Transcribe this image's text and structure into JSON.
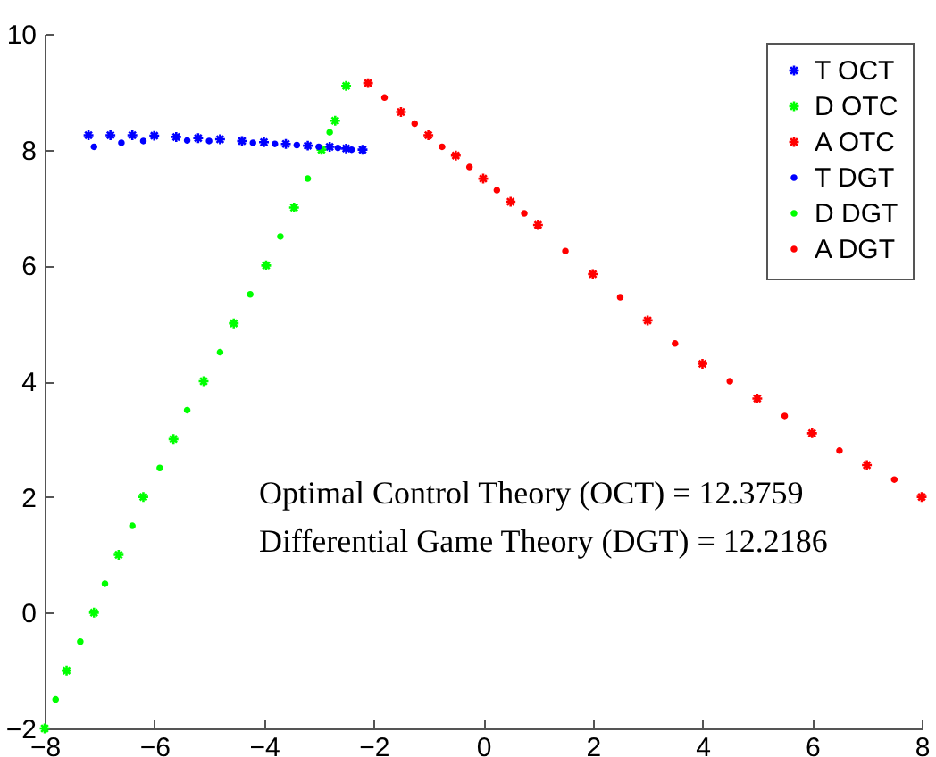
{
  "chart_data": {
    "type": "scatter",
    "xlim": [
      -8,
      8
    ],
    "xticks": [
      -8,
      -6,
      -4,
      -2,
      0,
      2,
      4,
      6,
      8
    ],
    "ylim": [
      -2,
      10
    ],
    "yticks": [
      -2,
      0,
      2,
      4,
      6,
      8,
      10
    ],
    "legend": "top right",
    "annotations": [
      "Optimal Control Theory (OCT) =  12.3759",
      "Differential Game Theory (DGT) =  12.2186"
    ],
    "series": [
      {
        "name": "T OCT",
        "color": "#0000ff",
        "marker": "cross",
        "x": [
          -7.2,
          -6.8,
          -6.4,
          -6.0,
          -5.6,
          -5.2,
          -4.8,
          -4.4,
          -4.0,
          -3.6,
          -3.2,
          -2.8,
          -2.5,
          -2.2
        ],
        "values": [
          8.25,
          8.25,
          8.25,
          8.24,
          8.22,
          8.2,
          8.18,
          8.15,
          8.13,
          8.1,
          8.07,
          8.05,
          8.02,
          8.0
        ]
      },
      {
        "name": "D OTC",
        "color": "#00ff00",
        "marker": "cross",
        "x": [
          -8.0,
          -7.6,
          -7.1,
          -6.65,
          -6.2,
          -5.65,
          -5.1,
          -4.55,
          -3.96,
          -3.45,
          -2.95,
          -2.7,
          -2.5
        ],
        "values": [
          -2.0,
          -1.0,
          0.0,
          1.0,
          2.0,
          3.0,
          4.0,
          5.0,
          6.0,
          7.0,
          8.0,
          8.5,
          9.1
        ]
      },
      {
        "name": "A OTC",
        "color": "#ff0000",
        "marker": "cross",
        "x": [
          -2.1,
          -1.5,
          -1.0,
          -0.5,
          0.0,
          0.5,
          1.0,
          2.0,
          3.0,
          4.0,
          5.0,
          6.0,
          7.0,
          8.0
        ],
        "values": [
          9.15,
          8.65,
          8.25,
          7.9,
          7.5,
          7.1,
          6.7,
          5.85,
          5.05,
          4.3,
          3.7,
          3.1,
          2.55,
          2.0
        ]
      },
      {
        "name": "T DGT",
        "color": "#0000ff",
        "marker": "circle",
        "x": [
          -7.1,
          -6.6,
          -6.2,
          -5.4,
          -5.0,
          -4.2,
          -3.8,
          -3.4,
          -3.0,
          -2.65,
          -2.4
        ],
        "values": [
          8.05,
          8.12,
          8.15,
          8.16,
          8.15,
          8.12,
          8.1,
          8.08,
          8.05,
          8.03,
          8.0
        ]
      },
      {
        "name": "D DGT",
        "color": "#00ff00",
        "marker": "circle",
        "x": [
          -7.8,
          -7.35,
          -6.9,
          -6.4,
          -5.9,
          -5.4,
          -4.8,
          -4.25,
          -3.7,
          -3.2,
          -2.8
        ],
        "values": [
          -1.5,
          -0.5,
          0.5,
          1.5,
          2.5,
          3.5,
          4.5,
          5.5,
          6.5,
          7.5,
          8.3
        ]
      },
      {
        "name": "A DGT",
        "color": "#ff0000",
        "marker": "circle",
        "x": [
          -1.8,
          -1.25,
          -0.75,
          -0.25,
          0.25,
          0.75,
          1.5,
          2.5,
          3.5,
          4.5,
          5.5,
          6.5,
          7.5
        ],
        "values": [
          8.9,
          8.45,
          8.05,
          7.7,
          7.3,
          6.9,
          6.25,
          5.45,
          4.65,
          4.0,
          3.4,
          2.8,
          2.3
        ]
      }
    ]
  }
}
